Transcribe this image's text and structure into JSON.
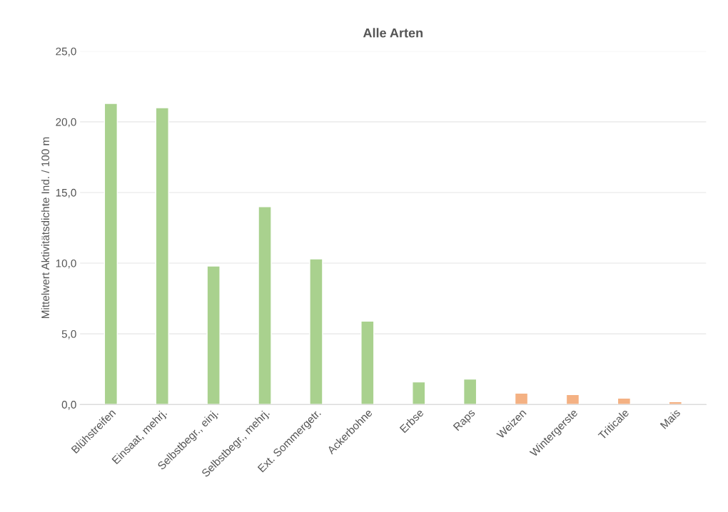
{
  "chart_data": {
    "type": "bar",
    "title": "Alle Arten",
    "ylabel": "Mittelwert Aktivitätsdichte Ind. / 100 m",
    "categories": [
      "Blühstreifen",
      "Einsaat, mehrj.",
      "Selbstbegr., einj.",
      "Selbstbegr., mehrj.",
      "Ext. Sommergetr.",
      "Ackerbohne",
      "Erbse",
      "Raps",
      "Weizen",
      "Wintergerste",
      "Triticale",
      "Mais"
    ],
    "values": [
      21.3,
      21.0,
      9.8,
      14.0,
      10.3,
      5.9,
      1.6,
      1.8,
      0.8,
      0.7,
      0.45,
      0.2
    ],
    "colors": [
      "#a9d18e",
      "#a9d18e",
      "#a9d18e",
      "#a9d18e",
      "#a9d18e",
      "#a9d18e",
      "#a9d18e",
      "#a9d18e",
      "#f4b183",
      "#f4b183",
      "#f4b183",
      "#f4b183"
    ],
    "ylim": [
      0,
      25
    ],
    "yticks": [
      {
        "value": 0,
        "label": "0,0"
      },
      {
        "value": 5,
        "label": "5,0"
      },
      {
        "value": 10,
        "label": "10,0"
      },
      {
        "value": 15,
        "label": "15,0"
      },
      {
        "value": 20,
        "label": "20,0"
      },
      {
        "value": 25,
        "label": "25,0"
      }
    ],
    "grid": "y"
  }
}
